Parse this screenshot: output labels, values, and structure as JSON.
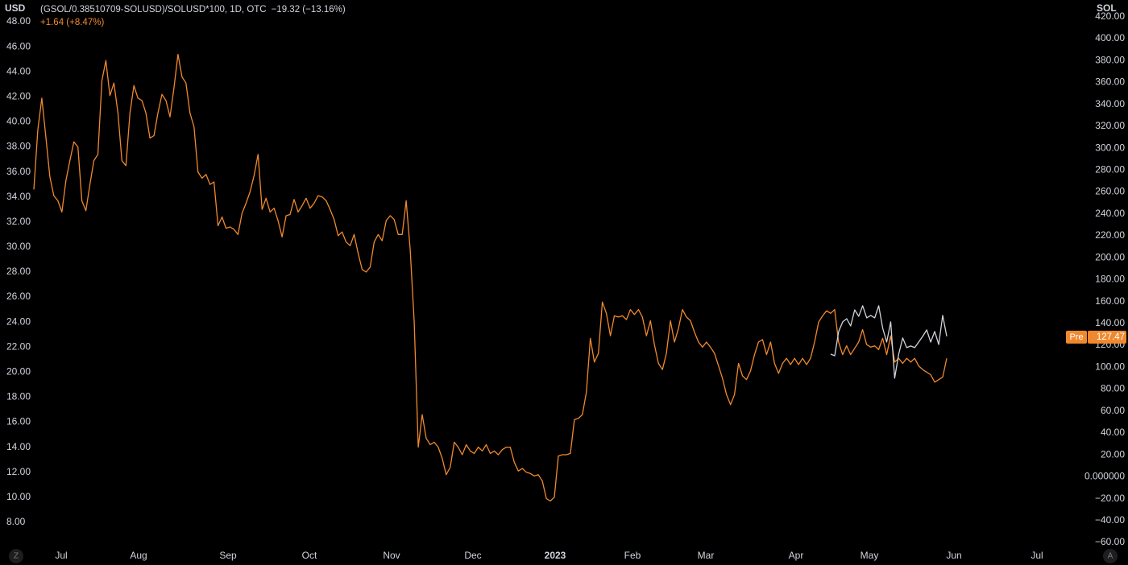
{
  "chart_data": {
    "type": "line",
    "title": "(GSOL/0.38510709-SOLUSD)/SOLUSD*100, 1D, OTC",
    "change": "−19.32 (−13.16%)",
    "secondary_change": "+1.64 (+8.47%)",
    "y_label": "USD",
    "y2_label": "SOL",
    "price_tag": "Pre",
    "last_value": 127.47,
    "corner_buttons": [
      "Z",
      "A"
    ],
    "grid": false,
    "xtick_labels": [
      "Jul",
      "Aug",
      "Sep",
      "Oct",
      "Nov",
      "Dec",
      "2023",
      "Feb",
      "Mar",
      "Apr",
      "May",
      "Jun",
      "Jul"
    ],
    "ylim": [
      6.0,
      49.74
    ],
    "yticks": [
      {
        "value": 8,
        "label": "8.00"
      },
      {
        "value": 10,
        "label": "10.00"
      },
      {
        "value": 12,
        "label": "12.00"
      },
      {
        "value": 14,
        "label": "14.00"
      },
      {
        "value": 16,
        "label": "16.00"
      },
      {
        "value": 18,
        "label": "18.00"
      },
      {
        "value": 20,
        "label": "20.00"
      },
      {
        "value": 22,
        "label": "22.00"
      },
      {
        "value": 24,
        "label": "24.00"
      },
      {
        "value": 26,
        "label": "26.00"
      },
      {
        "value": 28,
        "label": "28.00"
      },
      {
        "value": 30,
        "label": "30.00"
      },
      {
        "value": 32,
        "label": "32.00"
      },
      {
        "value": 34,
        "label": "34.00"
      },
      {
        "value": 36,
        "label": "36.00"
      },
      {
        "value": 38,
        "label": "38.00"
      },
      {
        "value": 40,
        "label": "40.00"
      },
      {
        "value": 42,
        "label": "42.00"
      },
      {
        "value": 44,
        "label": "44.00"
      },
      {
        "value": 46,
        "label": "46.00"
      },
      {
        "value": 48,
        "label": "48.00"
      }
    ],
    "y2lim": [
      -64.4,
      435.3
    ],
    "y2ticks": [
      {
        "value": -60,
        "label": "−60.00"
      },
      {
        "value": -40,
        "label": "−40.00"
      },
      {
        "value": -20,
        "label": "−20.00"
      },
      {
        "value": 0,
        "label": "0.000000"
      },
      {
        "value": 20,
        "label": "20.00"
      },
      {
        "value": 40,
        "label": "40.00"
      },
      {
        "value": 60,
        "label": "60.00"
      },
      {
        "value": 80,
        "label": "80.00"
      },
      {
        "value": 100,
        "label": "100.00"
      },
      {
        "value": 120,
        "label": "120.00"
      },
      {
        "value": 140,
        "label": "140.00"
      },
      {
        "value": 160,
        "label": "160.00"
      },
      {
        "value": 180,
        "label": "180.00"
      },
      {
        "value": 200,
        "label": "200.00"
      },
      {
        "value": 220,
        "label": "220.00"
      },
      {
        "value": 240,
        "label": "240.00"
      },
      {
        "value": 260,
        "label": "260.00"
      },
      {
        "value": 280,
        "label": "280.00"
      },
      {
        "value": 300,
        "label": "300.00"
      },
      {
        "value": 320,
        "label": "320.00"
      },
      {
        "value": 340,
        "label": "340.00"
      },
      {
        "value": 360,
        "label": "360.00"
      },
      {
        "value": 380,
        "label": "380.00"
      },
      {
        "value": 400,
        "label": "400.00"
      },
      {
        "value": 420,
        "label": "420.00"
      }
    ],
    "series": [
      {
        "color": "#f0892e",
        "values": [
          34.6,
          39.4,
          41.9,
          38.8,
          35.6,
          34.1,
          33.7,
          32.8,
          35.3,
          36.9,
          38.4,
          38.0,
          33.7,
          32.9,
          35.0,
          36.9,
          37.4,
          43.3,
          44.9,
          42.1,
          43.1,
          40.7,
          36.9,
          36.5,
          40.7,
          42.9,
          41.9,
          41.7,
          40.7,
          38.7,
          38.9,
          40.7,
          42.2,
          41.7,
          40.4,
          42.7,
          45.4,
          43.6,
          43.1,
          40.7,
          39.6,
          36.0,
          35.5,
          35.8,
          35.0,
          35.2,
          31.7,
          32.4,
          31.5,
          31.6,
          31.4,
          31.0,
          32.7,
          33.5,
          34.4,
          35.7,
          37.4,
          33.0,
          33.9,
          32.8,
          33.1,
          32.1,
          30.8,
          32.5,
          32.6,
          33.8,
          32.8,
          33.3,
          33.9,
          33.1,
          33.5,
          34.1,
          34.0,
          33.7,
          33.0,
          32.2,
          30.9,
          31.2,
          30.4,
          30.1,
          31.0,
          29.5,
          28.2,
          28.0,
          28.4,
          30.4,
          31.0,
          30.5,
          32.1,
          32.5,
          32.2,
          31.0,
          31.0,
          33.7,
          29.8,
          24.0,
          14.0,
          16.6,
          14.7,
          14.2,
          14.4,
          14.0,
          13.1,
          11.8,
          12.4,
          14.4,
          14.0,
          13.4,
          14.2,
          13.7,
          13.5,
          14.0,
          13.7,
          14.2,
          13.5,
          13.7,
          13.4,
          13.8,
          14.0,
          14.0,
          12.8,
          12.1,
          12.3,
          12.0,
          11.9,
          11.7,
          11.8,
          11.3,
          9.9,
          9.7,
          10.0,
          13.3,
          13.4,
          13.4,
          13.5,
          16.2,
          16.3,
          16.6,
          18.4,
          22.7,
          20.8,
          21.5,
          25.6,
          24.7,
          22.9,
          24.5,
          24.4,
          24.5,
          24.2,
          25.0,
          24.6,
          25.0,
          24.4,
          22.9,
          24.1,
          22.2,
          20.7,
          20.2,
          21.5,
          24.1,
          22.4,
          23.5,
          25.0,
          24.4,
          24.1,
          23.2,
          22.4,
          22.0,
          22.4,
          22.0,
          21.5,
          20.5,
          19.5,
          18.2,
          17.4,
          18.2,
          20.7,
          19.7,
          19.4,
          20.1,
          21.4,
          22.4,
          22.6,
          21.4,
          22.4,
          20.7,
          19.9,
          20.7,
          21.1,
          20.6,
          21.1,
          20.6,
          21.1,
          20.6,
          21.1,
          22.4,
          24.0,
          24.5,
          24.9,
          24.7,
          25.0,
          22.4,
          21.4,
          22.1,
          21.4,
          21.9,
          22.4,
          23.4,
          22.2,
          22.0,
          22.1,
          21.8,
          22.7,
          21.4,
          22.9,
          20.8,
          21.1,
          20.7,
          21.1,
          20.8,
          21.1,
          20.5,
          20.2,
          20.0,
          19.8,
          19.2,
          19.4,
          19.6,
          21.1
        ]
      },
      {
        "color": "#d1d4dc",
        "axis": "y2",
        "values": [
          112.0,
          110.5,
          132.6,
          141.4,
          144.3,
          137.7,
          152.4,
          146.5,
          156.1,
          145.1,
          147.3,
          145.1,
          156.1,
          135.5,
          123.0,
          141.4,
          90.0,
          112.0,
          126.7,
          117.9,
          119.4,
          117.9,
          123.0,
          128.2,
          134.1,
          123.0,
          132.6,
          120.8,
          147.3,
          128.2
        ]
      }
    ]
  }
}
